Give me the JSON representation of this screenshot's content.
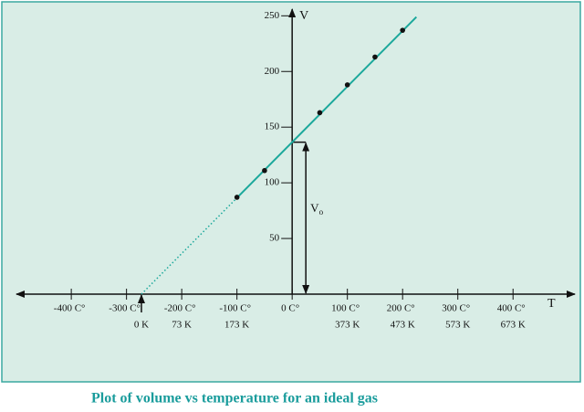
{
  "chart_data": {
    "type": "line",
    "caption": "Plot of volume vs temperature for an ideal gas",
    "y_axis_label": "V",
    "x_axis_label": "T",
    "v0_label": {
      "main": "V",
      "sub": "o"
    },
    "v0": 136.5,
    "zero_kelvin": -273,
    "xlim": [
      -463,
      512
    ],
    "ylim": [
      0,
      256
    ],
    "yticks": [
      50,
      100,
      150,
      200,
      250
    ],
    "xticks": [
      {
        "value": -400,
        "label": "-400 C°"
      },
      {
        "value": -300,
        "label": "-300 C°"
      },
      {
        "value": -200,
        "label": "-200 C°"
      },
      {
        "value": -100,
        "label": "-100 C°"
      },
      {
        "value": 0,
        "label": "0 C°"
      },
      {
        "value": 100,
        "label": "100 C°"
      },
      {
        "value": 200,
        "label": "200 C°"
      },
      {
        "value": 300,
        "label": "300 C°"
      },
      {
        "value": 400,
        "label": "400 C°"
      }
    ],
    "kelvin_ticks": [
      {
        "value": -273,
        "label": "0 K"
      },
      {
        "value": -200,
        "label": "73 K"
      },
      {
        "value": -100,
        "label": "173 K"
      },
      {
        "value": 100,
        "label": "373 K"
      },
      {
        "value": 200,
        "label": "473 K"
      },
      {
        "value": 300,
        "label": "573 K"
      },
      {
        "value": 400,
        "label": "673 K"
      }
    ],
    "color": "#1ba89b",
    "series": [
      {
        "style": "dotted",
        "x": [
          -273,
          -100
        ],
        "values": [
          0,
          86.5
        ]
      },
      {
        "style": "solid",
        "x": [
          -100,
          225
        ],
        "values": [
          86.5,
          249
        ]
      },
      {
        "style": "points",
        "x": [
          -100,
          -50,
          50,
          100,
          150,
          200
        ],
        "values": [
          87,
          111,
          163,
          188,
          213,
          237
        ]
      }
    ]
  }
}
